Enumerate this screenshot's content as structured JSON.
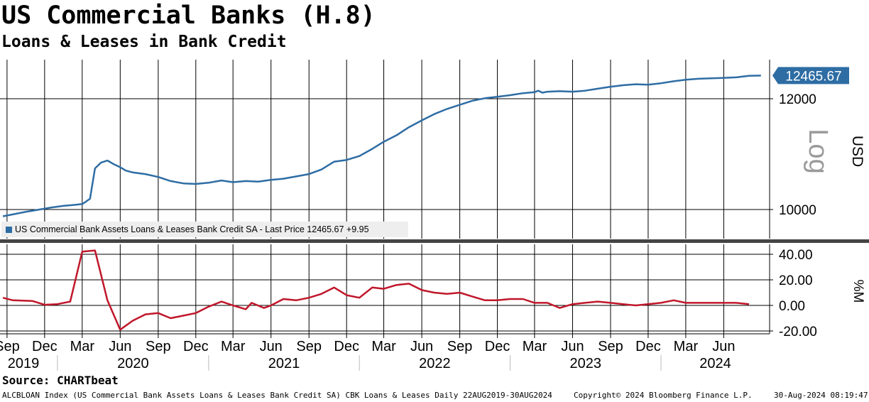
{
  "header": {
    "title": "US Commercial Banks (H.8)",
    "subtitle": "Loans & Leases in Bank Credit"
  },
  "legend": {
    "series_label": "US Commercial Bank Assets Loans & Leases Bank Credit SA - Last Price 12465.67  +9.95"
  },
  "footer": {
    "source": "Source: CHARTbeat",
    "ticker_info": "ALCBLOAN Index (US Commercial Bank Assets Loans & Leases Bank Credit SA) CBK Loans & Leases  Daily 22AUG2019-30AUG2024",
    "copyright": "Copyright© 2024 Bloomberg Finance L.P.",
    "timestamp": "30-Aug-2024 08:19:47"
  },
  "colors": {
    "top_series": "#2e6da4",
    "bottom_series": "#c0172b",
    "last_price_tag": "#2e6da4"
  },
  "chart_data": [
    {
      "type": "line",
      "title": "Loans & Leases in Bank Credit",
      "ylabel": "USD",
      "scale": "log",
      "scale_label": "Log",
      "ylim": [
        9600,
        12700
      ],
      "y_ticks": [
        "10000",
        "12000"
      ],
      "last_price_label": "12465.67",
      "grid": true,
      "series": [
        {
          "name": "US Commercial Bank Assets Loans & Leases Bank Credit SA",
          "x": [
            "2019-08-22",
            "2019-09-15",
            "2019-10-15",
            "2019-11-15",
            "2019-12-15",
            "2020-01-15",
            "2020-02-15",
            "2020-03-01",
            "2020-03-10",
            "2020-03-20",
            "2020-04-01",
            "2020-04-15",
            "2020-05-01",
            "2020-05-15",
            "2020-06-01",
            "2020-06-15",
            "2020-07-01",
            "2020-08-01",
            "2020-09-01",
            "2020-10-01",
            "2020-11-01",
            "2020-12-01",
            "2021-01-01",
            "2021-02-01",
            "2021-03-01",
            "2021-04-01",
            "2021-05-01",
            "2021-06-01",
            "2021-07-01",
            "2021-08-01",
            "2021-09-01",
            "2021-10-01",
            "2021-11-01",
            "2021-12-01",
            "2022-01-01",
            "2022-02-01",
            "2022-03-01",
            "2022-04-01",
            "2022-05-01",
            "2022-06-01",
            "2022-07-01",
            "2022-08-01",
            "2022-09-01",
            "2022-10-01",
            "2022-11-01",
            "2022-12-01",
            "2023-01-01",
            "2023-02-01",
            "2023-03-01",
            "2023-03-10",
            "2023-03-20",
            "2023-04-01",
            "2023-05-01",
            "2023-06-01",
            "2023-07-01",
            "2023-08-01",
            "2023-09-01",
            "2023-10-01",
            "2023-11-01",
            "2023-12-01",
            "2024-01-01",
            "2024-02-01",
            "2024-03-01",
            "2024-04-01",
            "2024-05-01",
            "2024-06-01",
            "2024-07-01",
            "2024-08-01",
            "2024-08-30"
          ],
          "values": [
            9890,
            9920,
            9960,
            9995,
            10030,
            10060,
            10080,
            10090,
            10130,
            10180,
            10700,
            10800,
            10840,
            10780,
            10720,
            10660,
            10630,
            10600,
            10550,
            10480,
            10440,
            10430,
            10450,
            10490,
            10460,
            10480,
            10470,
            10500,
            10520,
            10560,
            10600,
            10680,
            10820,
            10850,
            10920,
            11050,
            11180,
            11300,
            11450,
            11580,
            11700,
            11800,
            11880,
            11960,
            12010,
            12040,
            12070,
            12110,
            12130,
            12160,
            12120,
            12140,
            12150,
            12140,
            12160,
            12200,
            12240,
            12270,
            12290,
            12280,
            12310,
            12350,
            12380,
            12400,
            12410,
            12420,
            12430,
            12460,
            12465.67
          ]
        }
      ]
    },
    {
      "type": "line",
      "ylabel": "%M",
      "ylim": [
        -25,
        48
      ],
      "y_ticks": [
        "40.00",
        "20.00",
        "0.00",
        "-20.00"
      ],
      "grid": true,
      "series": [
        {
          "x": [
            "2019-08-22",
            "2019-09-15",
            "2019-11-01",
            "2019-12-01",
            "2020-01-01",
            "2020-02-01",
            "2020-03-01",
            "2020-04-01",
            "2020-05-01",
            "2020-06-01",
            "2020-07-01",
            "2020-08-01",
            "2020-09-01",
            "2020-10-01",
            "2020-11-01",
            "2020-12-01",
            "2021-01-01",
            "2021-02-01",
            "2021-03-01",
            "2021-04-01",
            "2021-04-15",
            "2021-05-15",
            "2021-06-01",
            "2021-07-01",
            "2021-08-01",
            "2021-09-01",
            "2021-10-01",
            "2021-11-01",
            "2021-12-01",
            "2022-01-01",
            "2022-02-01",
            "2022-03-01",
            "2022-04-01",
            "2022-05-01",
            "2022-06-01",
            "2022-07-01",
            "2022-08-01",
            "2022-09-01",
            "2022-10-01",
            "2022-11-01",
            "2022-12-01",
            "2023-01-01",
            "2023-02-01",
            "2023-03-01",
            "2023-04-01",
            "2023-05-01",
            "2023-06-01",
            "2023-07-01",
            "2023-08-01",
            "2023-09-01",
            "2023-10-01",
            "2023-11-01",
            "2023-12-01",
            "2024-01-01",
            "2024-02-01",
            "2024-03-01",
            "2024-04-01",
            "2024-05-01",
            "2024-06-01",
            "2024-07-01",
            "2024-08-01"
          ],
          "values": [
            6,
            4,
            3.5,
            0.5,
            1,
            3,
            42,
            43,
            4,
            -19,
            -12,
            -7,
            -6,
            -10,
            -8,
            -6,
            -1,
            3,
            0,
            -3,
            2,
            -2,
            0,
            5,
            4,
            6,
            9,
            14,
            8,
            6,
            14,
            13,
            16,
            17,
            12,
            10,
            9,
            10,
            7,
            4,
            4,
            5,
            5,
            2,
            2,
            -2,
            1,
            2,
            3,
            2,
            1,
            0,
            1,
            2,
            4,
            2,
            2,
            2,
            2,
            2,
            1
          ]
        }
      ]
    }
  ],
  "x_axis": {
    "month_ticks": [
      "Sep",
      "Dec",
      "Mar",
      "Jun",
      "Sep",
      "Dec",
      "Mar",
      "Jun",
      "Sep",
      "Dec",
      "Mar",
      "Jun",
      "Sep",
      "Dec",
      "Mar",
      "Jun",
      "Sep",
      "Dec",
      "Mar",
      "Jun"
    ],
    "month_dates": [
      "2019-09-01",
      "2019-12-01",
      "2020-03-01",
      "2020-06-01",
      "2020-09-01",
      "2020-12-01",
      "2021-03-01",
      "2021-06-01",
      "2021-09-01",
      "2021-12-01",
      "2022-03-01",
      "2022-06-01",
      "2022-09-01",
      "2022-12-01",
      "2023-03-01",
      "2023-06-01",
      "2023-09-01",
      "2023-12-01",
      "2024-03-01",
      "2024-06-01"
    ],
    "years": [
      "2019",
      "2020",
      "2021",
      "2022",
      "2023",
      "2024"
    ]
  }
}
